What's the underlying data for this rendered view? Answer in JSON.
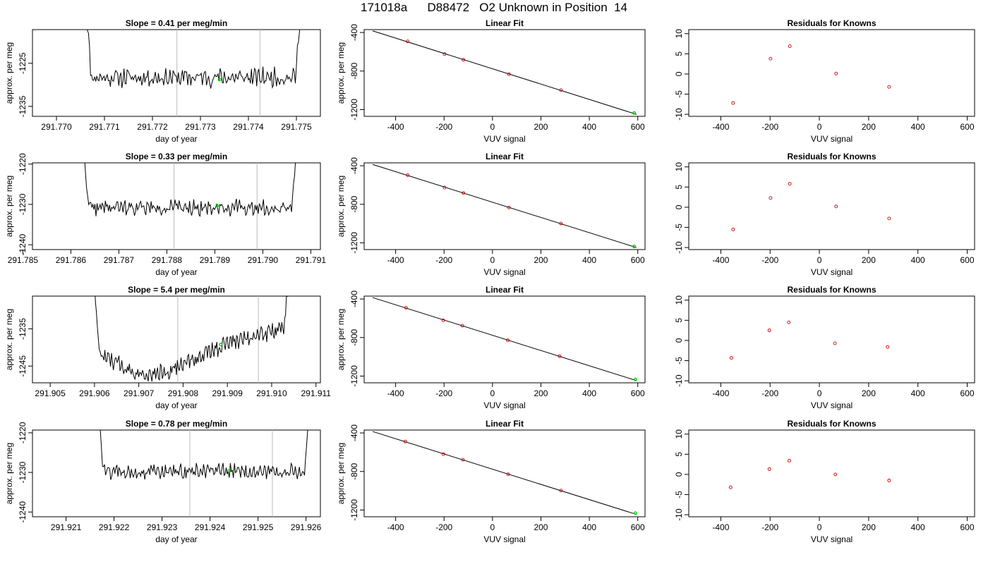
{
  "title": "171018a      D88472   O2 Unknown in Position  14",
  "colors": {
    "line": "#000000",
    "vline": "#bbbbbb",
    "green": "#00cc00",
    "residual": "#cc0000"
  },
  "chart_data": [
    {
      "type": "line",
      "row": 0,
      "title": "Slope =  0.41  per meg/min",
      "xlabel": "day of year",
      "ylabel": "approx. per meg",
      "xlim": [
        291.7695,
        291.7755
      ],
      "ylim": [
        -1237.3,
        -1217.2
      ],
      "xticks": [
        "291.770",
        "291.771",
        "291.772",
        "291.773",
        "291.774",
        "291.775"
      ],
      "yticks": [
        -1225,
        -1235
      ],
      "vlines": [
        291.77251,
        291.77424
      ],
      "data_x_range": [
        291.77058,
        291.77513
      ],
      "baseline": -1228.3,
      "noise": 1.7,
      "trend": 0.0,
      "edge_height": 11.0,
      "edge_pos": "top",
      "unknown_point": {
        "x": 291.7734,
        "y": -1228.8
      },
      "seed": 11
    },
    {
      "type": "scatter_line",
      "row": 0,
      "title": "Linear Fit",
      "xlabel": "VUV signal",
      "ylabel": "approx. per meg",
      "xlim": [
        -530,
        630
      ],
      "ylim": [
        -1270,
        -370
      ],
      "xticks": [
        -400,
        -200,
        0,
        200,
        400,
        600
      ],
      "yticks": [
        -400,
        -800,
        -1200
      ],
      "fit_line": {
        "x0": -495,
        "x1": 595
      },
      "knowns": [
        {
          "x": -350,
          "y": -492
        },
        {
          "x": -198,
          "y": -624
        },
        {
          "x": -120,
          "y": -683
        },
        {
          "x": 68,
          "y": -833
        },
        {
          "x": 283,
          "y": -998
        }
      ],
      "unknown": {
        "x": 585,
        "y": -1235
      }
    },
    {
      "type": "scatter",
      "row": 0,
      "title": "Residuals for Knowns",
      "xlabel": "VUV signal",
      "ylabel": "",
      "xlim": [
        -530,
        630
      ],
      "ylim": [
        -10.5,
        11
      ],
      "xticks": [
        -400,
        -200,
        0,
        200,
        400,
        600
      ],
      "yticks": [
        -10,
        -5,
        0,
        5,
        10
      ],
      "points": [
        {
          "x": -350,
          "y": -7.2
        },
        {
          "x": -198,
          "y": 3.8
        },
        {
          "x": -120,
          "y": 6.9
        },
        {
          "x": 68,
          "y": 0.1
        },
        {
          "x": 283,
          "y": -3.2
        }
      ]
    },
    {
      "type": "line",
      "row": 1,
      "title": "Slope =  0.33  per meg/min",
      "xlabel": "day of year",
      "ylabel": "approx. per meg",
      "xlim": [
        291.7852,
        291.7912
      ],
      "ylim": [
        -1241.2,
        -1219.7
      ],
      "xticks": [
        "291.785",
        "291.786",
        "291.787",
        "291.788",
        "291.789",
        "291.790",
        "291.791"
      ],
      "yticks": [
        -1220,
        -1230,
        -1240
      ],
      "vlines": [
        291.78815,
        291.78988
      ],
      "data_x_range": [
        291.78622,
        291.79075
      ],
      "baseline": -1230.8,
      "noise": 1.5,
      "trend": 0.0,
      "edge_height": 11.0,
      "edge_pos": "top",
      "unknown_point": {
        "x": 291.78905,
        "y": -1230.3
      },
      "seed": 22
    },
    {
      "type": "scatter_line",
      "row": 1,
      "title": "Linear Fit",
      "xlabel": "VUV signal",
      "ylabel": "approx. per meg",
      "xlim": [
        -530,
        630
      ],
      "ylim": [
        -1270,
        -370
      ],
      "xticks": [
        -400,
        -200,
        0,
        200,
        400,
        600
      ],
      "yticks": [
        -400,
        -800,
        -1200
      ],
      "fit_line": {
        "x0": -495,
        "x1": 595
      },
      "knowns": [
        {
          "x": -350,
          "y": -497
        },
        {
          "x": -198,
          "y": -626
        },
        {
          "x": -120,
          "y": -683
        },
        {
          "x": 68,
          "y": -834
        },
        {
          "x": 283,
          "y": -1000
        }
      ],
      "unknown": {
        "x": 585,
        "y": -1238
      }
    },
    {
      "type": "scatter",
      "row": 1,
      "title": "Residuals for Knowns",
      "xlabel": "VUV signal",
      "ylabel": "",
      "xlim": [
        -530,
        630
      ],
      "ylim": [
        -10.5,
        11
      ],
      "xticks": [
        -400,
        -200,
        0,
        200,
        400,
        600
      ],
      "yticks": [
        -10,
        -5,
        0,
        5,
        10
      ],
      "points": [
        {
          "x": -350,
          "y": -5.5
        },
        {
          "x": -198,
          "y": 2.3
        },
        {
          "x": -120,
          "y": 5.8
        },
        {
          "x": 68,
          "y": 0.2
        },
        {
          "x": 283,
          "y": -2.8
        }
      ]
    },
    {
      "type": "line",
      "row": 2,
      "title": "Slope =  5.4  per meg/min",
      "xlabel": "day of year",
      "ylabel": "approx. per meg",
      "xlim": [
        291.9046,
        291.9111
      ],
      "ylim": [
        -1249.5,
        -1226.2
      ],
      "xticks": [
        "291.905",
        "291.906",
        "291.907",
        "291.908",
        "291.909",
        "291.910",
        "291.911"
      ],
      "yticks": [
        -1235,
        -1245
      ],
      "vlines": [
        291.90788,
        291.9097
      ],
      "data_x_range": [
        291.90598,
        291.91042
      ],
      "baseline": -1238.5,
      "noise": 1.8,
      "trend": 0.0,
      "edge_height": 9.0,
      "edge_pos": "top",
      "dip": {
        "x": 291.9073,
        "depth": 8.5,
        "width": 0.0013
      },
      "rise": {
        "x": 291.9098,
        "amount": 5.0
      },
      "unknown_point": {
        "x": 291.90885,
        "y": -1239.2
      },
      "seed": 33
    },
    {
      "type": "scatter_line",
      "row": 2,
      "title": "Linear Fit",
      "xlabel": "VUV signal",
      "ylabel": "approx. per meg",
      "xlim": [
        -530,
        630
      ],
      "ylim": [
        -1270,
        -370
      ],
      "xticks": [
        -400,
        -200,
        0,
        200,
        400,
        600
      ],
      "yticks": [
        -400,
        -800,
        -1200
      ],
      "fit_line": {
        "x0": -495,
        "x1": 595
      },
      "knowns": [
        {
          "x": -357,
          "y": -491
        },
        {
          "x": -203,
          "y": -621
        },
        {
          "x": -124,
          "y": -677
        },
        {
          "x": 63,
          "y": -828
        },
        {
          "x": 277,
          "y": -994
        }
      ],
      "unknown": {
        "x": 590,
        "y": -1235
      }
    },
    {
      "type": "scatter",
      "row": 2,
      "title": "Residuals for Knowns",
      "xlabel": "VUV signal",
      "ylabel": "",
      "xlim": [
        -530,
        630
      ],
      "ylim": [
        -10.5,
        11
      ],
      "xticks": [
        -400,
        -200,
        0,
        200,
        400,
        600
      ],
      "yticks": [
        -10,
        -5,
        0,
        5,
        10
      ],
      "points": [
        {
          "x": -357,
          "y": -4.3
        },
        {
          "x": -203,
          "y": 2.5
        },
        {
          "x": -124,
          "y": 4.5
        },
        {
          "x": 63,
          "y": -0.7
        },
        {
          "x": 277,
          "y": -1.6
        }
      ]
    },
    {
      "type": "line",
      "row": 3,
      "title": "Slope =  0.78  per meg/min",
      "xlabel": "day of year",
      "ylabel": "approx. per meg",
      "xlim": [
        291.9203,
        291.9263
      ],
      "ylim": [
        -1241.2,
        -1219.3
      ],
      "xticks": [
        "291.921",
        "291.922",
        "291.923",
        "291.924",
        "291.925",
        "291.926"
      ],
      "yticks": [
        -1220,
        -1230,
        -1240
      ],
      "vlines": [
        291.92358,
        291.9253
      ],
      "data_x_range": [
        291.92163,
        291.92612
      ],
      "baseline": -1229.8,
      "noise": 1.5,
      "trend": 0.0,
      "edge_height": 11.0,
      "edge_pos": "top",
      "unknown_point": {
        "x": 291.9244,
        "y": -1229.6
      },
      "seed": 44
    },
    {
      "type": "scatter_line",
      "row": 3,
      "title": "Linear Fit",
      "xlabel": "VUV signal",
      "ylabel": "approx. per meg",
      "xlim": [
        -530,
        630
      ],
      "ylim": [
        -1270,
        -370
      ],
      "xticks": [
        -400,
        -200,
        0,
        200,
        400,
        600
      ],
      "yticks": [
        -400,
        -800,
        -1200
      ],
      "fit_line": {
        "x0": -495,
        "x1": 595
      },
      "knowns": [
        {
          "x": -360,
          "y": -489
        },
        {
          "x": -203,
          "y": -620
        },
        {
          "x": -122,
          "y": -678
        },
        {
          "x": 65,
          "y": -829
        },
        {
          "x": 283,
          "y": -998
        }
      ],
      "unknown": {
        "x": 590,
        "y": -1232
      }
    },
    {
      "type": "scatter",
      "row": 3,
      "title": "Residuals for Knowns",
      "xlabel": "VUV signal",
      "ylabel": "",
      "xlim": [
        -530,
        630
      ],
      "ylim": [
        -10.5,
        11
      ],
      "xticks": [
        -400,
        -200,
        0,
        200,
        400,
        600
      ],
      "yticks": [
        -10,
        -5,
        0,
        5,
        10
      ],
      "points": [
        {
          "x": -360,
          "y": -3.2
        },
        {
          "x": -203,
          "y": 1.3
        },
        {
          "x": -122,
          "y": 3.4
        },
        {
          "x": 65,
          "y": 0.0
        },
        {
          "x": 283,
          "y": -1.5
        }
      ]
    }
  ]
}
